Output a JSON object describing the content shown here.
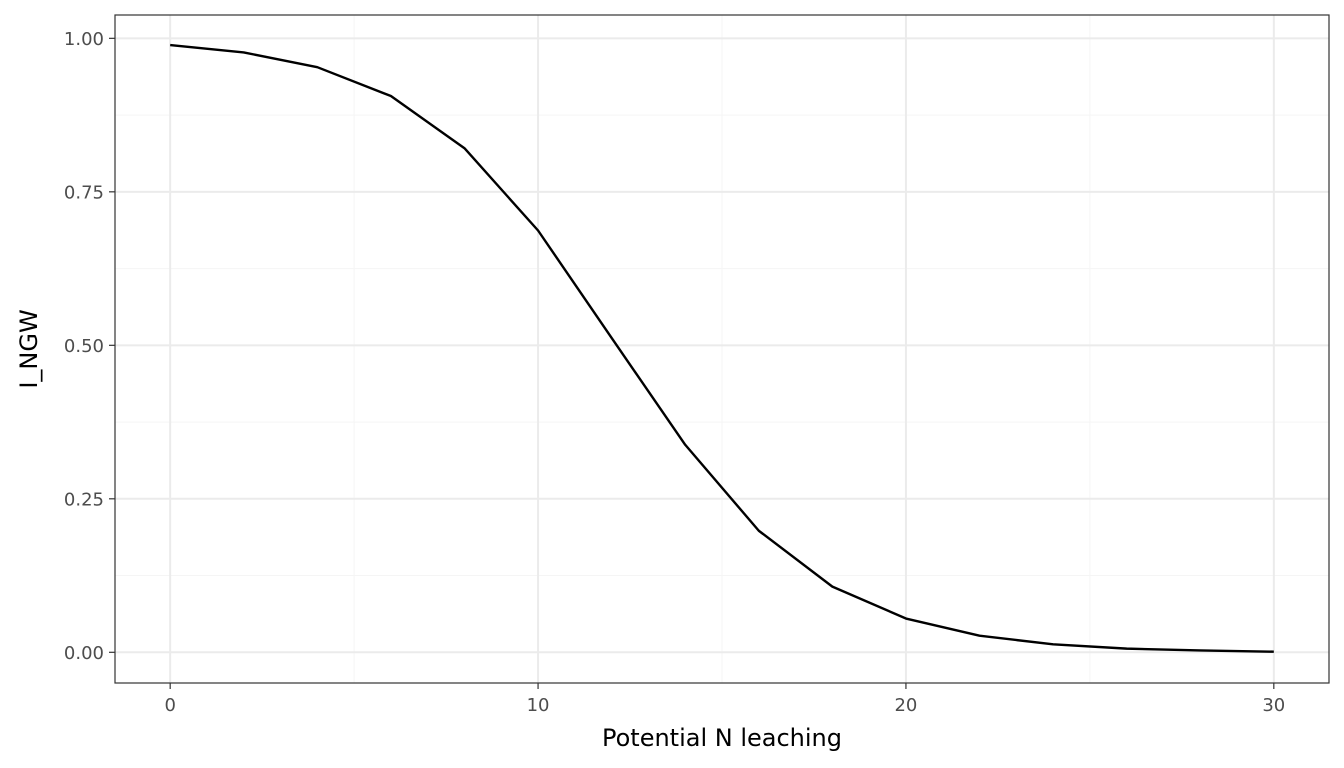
{
  "chart_data": {
    "type": "line",
    "title": "",
    "xlabel": "Potential N leaching",
    "ylabel": "I_NGW",
    "xlim": [
      -1.5,
      31.5
    ],
    "ylim": [
      -0.05,
      1.038
    ],
    "x_major_ticks": [
      0,
      10,
      20,
      30
    ],
    "x_tick_labels": [
      "0",
      "10",
      "20",
      "30"
    ],
    "x_minor_ticks": [
      5,
      15,
      25
    ],
    "y_major_ticks": [
      0,
      0.25,
      0.5,
      0.75,
      1.0
    ],
    "y_tick_labels": [
      "0.00",
      "0.25",
      "0.50",
      "0.75",
      "1.00"
    ],
    "y_minor_ticks": [
      0.125,
      0.375,
      0.625,
      0.875
    ],
    "grid": true,
    "legend": "none",
    "series": [
      {
        "x": [
          0,
          2,
          4,
          6,
          8,
          10,
          12,
          14,
          16,
          18,
          20,
          22,
          24,
          26,
          28,
          30
        ],
        "y": [
          0.989,
          0.977,
          0.953,
          0.906,
          0.821,
          0.687,
          0.512,
          0.338,
          0.198,
          0.107,
          0.055,
          0.027,
          0.013,
          0.006,
          0.003,
          0.001
        ],
        "color": "#000000"
      }
    ]
  },
  "colors": {
    "background": "#ffffff",
    "panel_border": "#333333",
    "grid_major": "#ebebeb",
    "grid_minor": "#f5f5f5",
    "tick_mark": "#333333",
    "tick_label": "#4d4d4d",
    "line": "#000000"
  }
}
